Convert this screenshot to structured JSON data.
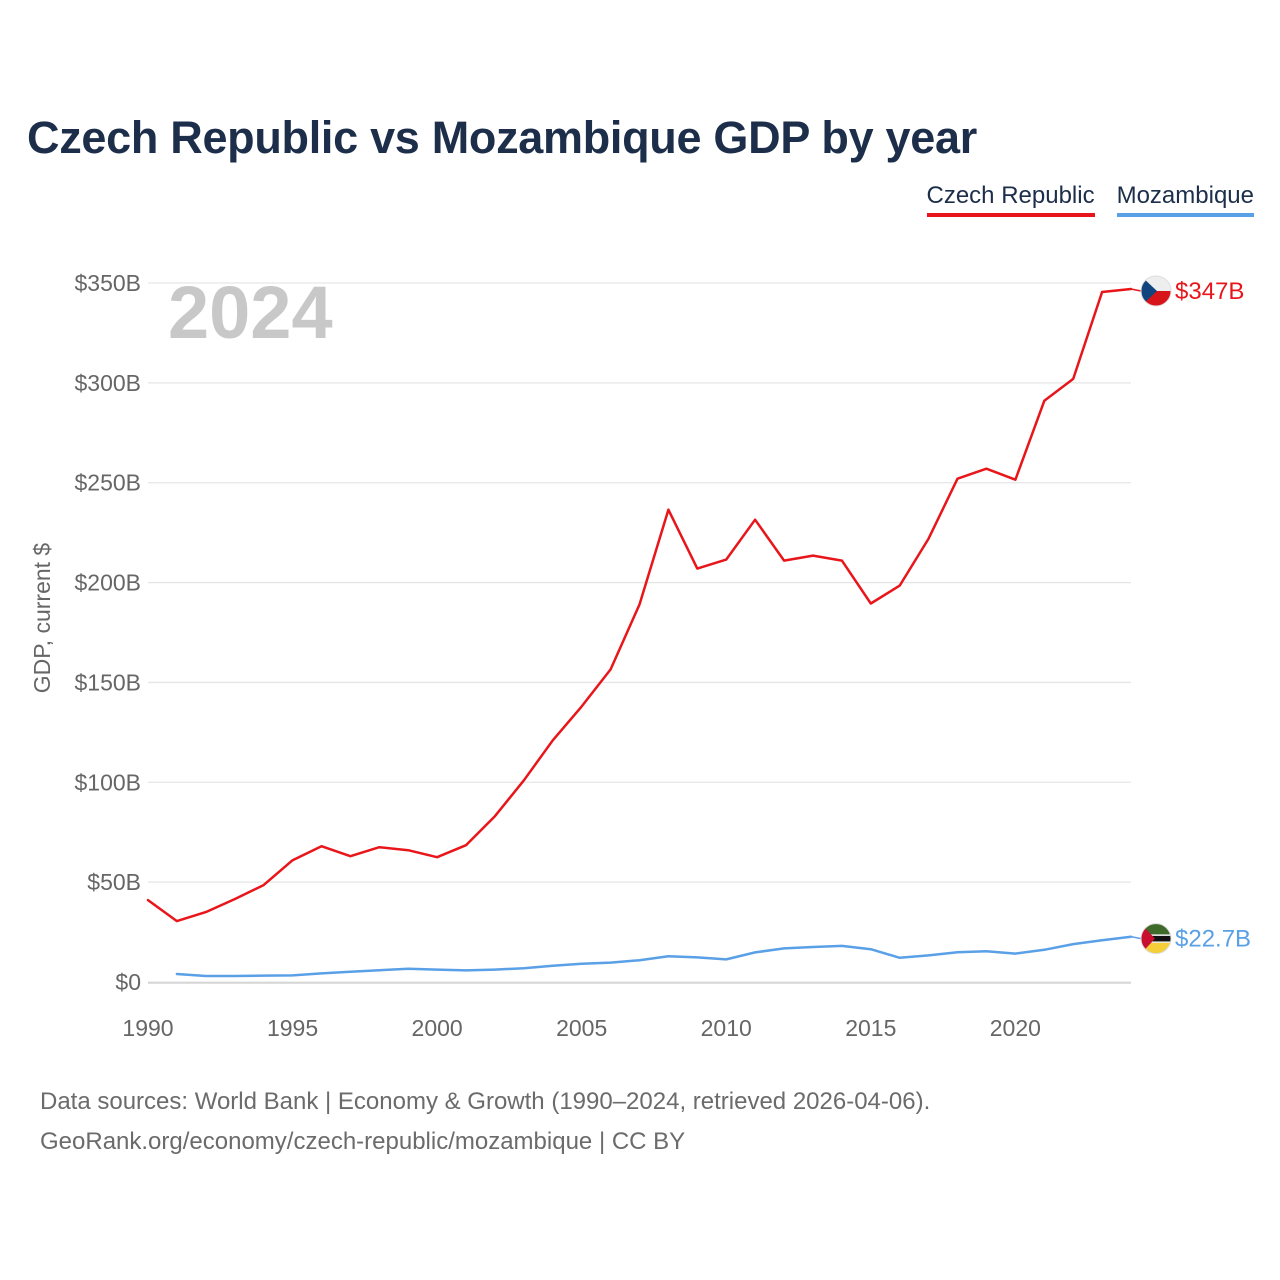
{
  "title": "Czech Republic vs Mozambique GDP by year",
  "legend": [
    {
      "label": "Czech Republic",
      "color": "#e8161b"
    },
    {
      "label": "Mozambique",
      "color": "#5aa0e6"
    }
  ],
  "year_label": "2024",
  "sources": {
    "line1": "Data sources: World Bank | Economy & Growth (1990–2024, retrieved 2026-04-06).",
    "line2": "GeoRank.org/economy/czech-republic/mozambique | CC BY"
  },
  "chart_data": {
    "type": "line",
    "title": "Czech Republic vs Mozambique GDP by year",
    "xlabel": "",
    "ylabel": "GDP, current $",
    "xlim": [
      1990,
      2024
    ],
    "ylim": [
      0,
      350
    ],
    "y_ticks": [
      0,
      50,
      100,
      150,
      200,
      250,
      300,
      350
    ],
    "y_tick_labels": [
      "$0",
      "$50B",
      "$100B",
      "$150B",
      "$200B",
      "$250B",
      "$300B",
      "$350B"
    ],
    "x_ticks": [
      1990,
      1995,
      2000,
      2005,
      2010,
      2015,
      2020
    ],
    "x_tick_labels": [
      "1990",
      "1995",
      "2000",
      "2005",
      "2010",
      "2015",
      "2020"
    ],
    "grid": true,
    "series": [
      {
        "name": "Czech Republic",
        "color": "#e8161b",
        "end_label": "$347B",
        "flag": "czech-republic",
        "x": [
          1990,
          1991,
          1992,
          1993,
          1994,
          1995,
          1996,
          1997,
          1998,
          1999,
          2000,
          2001,
          2002,
          2003,
          2004,
          2005,
          2006,
          2007,
          2008,
          2009,
          2010,
          2011,
          2012,
          2013,
          2014,
          2015,
          2016,
          2017,
          2018,
          2019,
          2020,
          2021,
          2022,
          2023,
          2024
        ],
        "values": [
          41,
          30.5,
          35,
          41.5,
          48.5,
          61,
          68,
          63,
          67.5,
          66,
          62.5,
          68.5,
          83,
          101,
          121,
          138,
          156.5,
          189,
          236.5,
          207,
          211.5,
          231.5,
          211,
          213.5,
          211,
          189.5,
          198.5,
          222,
          252,
          257,
          251.5,
          291,
          302,
          345.5,
          347
        ]
      },
      {
        "name": "Mozambique",
        "color": "#5aa0e6",
        "end_label": "$22.7B",
        "flag": "mozambique",
        "x": [
          1991,
          1992,
          1993,
          1994,
          1995,
          1996,
          1997,
          1998,
          1999,
          2000,
          2001,
          2002,
          2003,
          2004,
          2005,
          2006,
          2007,
          2008,
          2009,
          2010,
          2011,
          2012,
          2013,
          2014,
          2015,
          2016,
          2017,
          2018,
          2019,
          2020,
          2021,
          2022,
          2023,
          2024
        ],
        "values": [
          4,
          3,
          3,
          3.2,
          3.3,
          4.3,
          5.1,
          5.9,
          6.6,
          6.2,
          5.8,
          6.2,
          6.9,
          8.1,
          9.1,
          9.7,
          10.9,
          12.9,
          12.3,
          11.3,
          14.8,
          16.8,
          17.5,
          18.1,
          16.4,
          12.1,
          13.3,
          14.9,
          15.4,
          14.2,
          16.1,
          19.0,
          20.9,
          22.7
        ]
      }
    ]
  }
}
